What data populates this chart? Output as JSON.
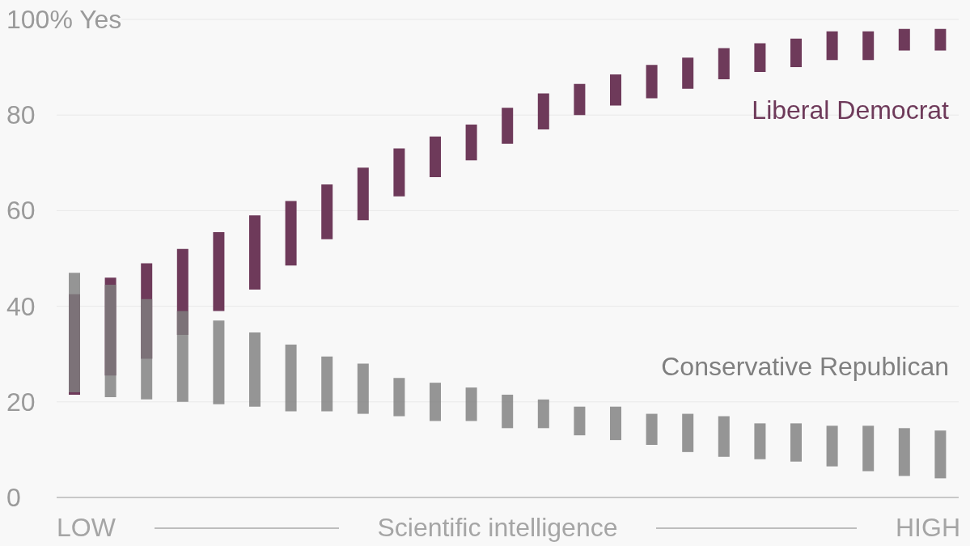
{
  "chart_data": {
    "type": "bar",
    "xlabel": "Scientific intelligence",
    "annotations": [
      "LOW",
      "HIGH"
    ],
    "categories": [
      null,
      null,
      null,
      null,
      null,
      null,
      null,
      null,
      null,
      null,
      null,
      null,
      null,
      null,
      null,
      null,
      null,
      null,
      null,
      null,
      null,
      null,
      null,
      null,
      null
    ],
    "series": [
      {
        "name": "Liberal Democrat",
        "color": "#6e3a5a",
        "base": [
          21.5,
          25.5,
          29,
          34,
          39,
          43.5,
          48.5,
          54,
          58,
          63,
          67,
          70.5,
          74,
          77,
          80,
          82,
          83.5,
          85.5,
          87.5,
          89,
          90,
          91.5,
          91.5,
          93.5,
          93.5
        ],
        "values": [
          21,
          20.5,
          20,
          18,
          16.5,
          15.5,
          13.5,
          11.5,
          11,
          10,
          8.5,
          7.5,
          7.5,
          7.5,
          6.5,
          6.5,
          7,
          6.5,
          6.5,
          6,
          6,
          6,
          6,
          4.5,
          4.5
        ]
      },
      {
        "name": "Conservative Republican",
        "color": "#7f7f7f",
        "base": [
          22,
          21,
          20.5,
          20,
          19.5,
          19,
          18,
          18,
          17.5,
          17,
          16,
          16,
          14.5,
          14.5,
          13,
          12,
          11,
          9.5,
          8.5,
          8,
          7.5,
          6.5,
          5.5,
          4.5,
          4
        ],
        "values": [
          25,
          23.5,
          21,
          19,
          17.5,
          15.5,
          14,
          11.5,
          10.5,
          8,
          8,
          7,
          7,
          6,
          6,
          7,
          6.5,
          8,
          8.5,
          7.5,
          8,
          8.5,
          9.5,
          10,
          10
        ]
      }
    ],
    "ylim": [
      0,
      100
    ],
    "yticks": [
      0,
      20,
      40,
      60,
      80,
      {
        "value": 100,
        "label": "100% Yes"
      }
    ],
    "grid": "y"
  }
}
